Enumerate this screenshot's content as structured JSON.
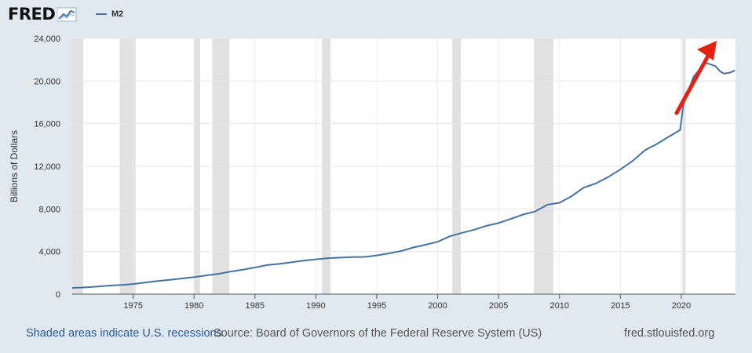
{
  "header": {
    "logo_text": "FRED",
    "legend_label": "M2"
  },
  "footer": {
    "recessions_link": "Shaded areas indicate U.S. recessions",
    "source": "Source: Board of Governors of the Federal Reserve System (US)",
    "site": "fred.stlouisfed.org"
  },
  "colors": {
    "series": "#4572a7",
    "arrow": "#e32214",
    "recession": "#e1e1e1"
  },
  "chart_data": {
    "type": "line",
    "title": "M2",
    "ylabel": "Billions of Dollars",
    "xlabel": "",
    "xlim": [
      1970.0,
      2024.45
    ],
    "ylim": [
      0,
      24000
    ],
    "x_ticks": [
      1975,
      1980,
      1985,
      1990,
      1995,
      2000,
      2005,
      2010,
      2015,
      2020
    ],
    "x_tick_labels": [
      "1975",
      "1980",
      "1985",
      "1990",
      "1995",
      "2000",
      "2005",
      "2010",
      "2015",
      "2020"
    ],
    "y_ticks": [
      0,
      4000,
      8000,
      12000,
      16000,
      20000,
      24000
    ],
    "y_tick_labels": [
      "0",
      "4,000",
      "8,000",
      "12,000",
      "16,000",
      "20,000",
      "24,000"
    ],
    "recessions": [
      [
        1970.0,
        1970.9
      ],
      [
        1973.9,
        1975.2
      ],
      [
        1980.0,
        1980.5
      ],
      [
        1981.5,
        1982.9
      ],
      [
        1990.5,
        1991.2
      ],
      [
        2001.2,
        2001.9
      ],
      [
        2007.9,
        2009.5
      ],
      [
        2020.1,
        2020.35
      ]
    ],
    "series": [
      {
        "name": "M2",
        "x": [
          1970.0,
          1971,
          1972,
          1973,
          1974,
          1975,
          1976,
          1977,
          1978,
          1979,
          1980,
          1981,
          1982,
          1983,
          1984,
          1985,
          1986,
          1987,
          1988,
          1989,
          1990,
          1991,
          1992,
          1993,
          1994,
          1995,
          1996,
          1997,
          1998,
          1999,
          2000,
          2001,
          2002,
          2003,
          2004,
          2005,
          2006,
          2007,
          2008,
          2008.7,
          2009,
          2010,
          2011,
          2011.5,
          2012,
          2013,
          2014,
          2015,
          2016,
          2017,
          2018,
          2019,
          2019.9,
          2020.2,
          2020.5,
          2021,
          2021.5,
          2022,
          2022.3,
          2022.8,
          2023.2,
          2023.5,
          2024,
          2024.4
        ],
        "values": [
          590,
          630,
          710,
          800,
          860,
          950,
          1100,
          1240,
          1350,
          1470,
          1600,
          1760,
          1910,
          2120,
          2300,
          2500,
          2730,
          2840,
          2990,
          3150,
          3270,
          3380,
          3430,
          3480,
          3500,
          3640,
          3830,
          4050,
          4380,
          4640,
          4920,
          5430,
          5760,
          6050,
          6410,
          6680,
          7060,
          7470,
          7760,
          8200,
          8400,
          8580,
          9200,
          9600,
          10000,
          10400,
          11000,
          11700,
          12500,
          13500,
          14100,
          14800,
          15400,
          18000,
          18800,
          20400,
          21100,
          21700,
          21600,
          21400,
          20900,
          20700,
          20800,
          21000
        ]
      }
    ]
  }
}
